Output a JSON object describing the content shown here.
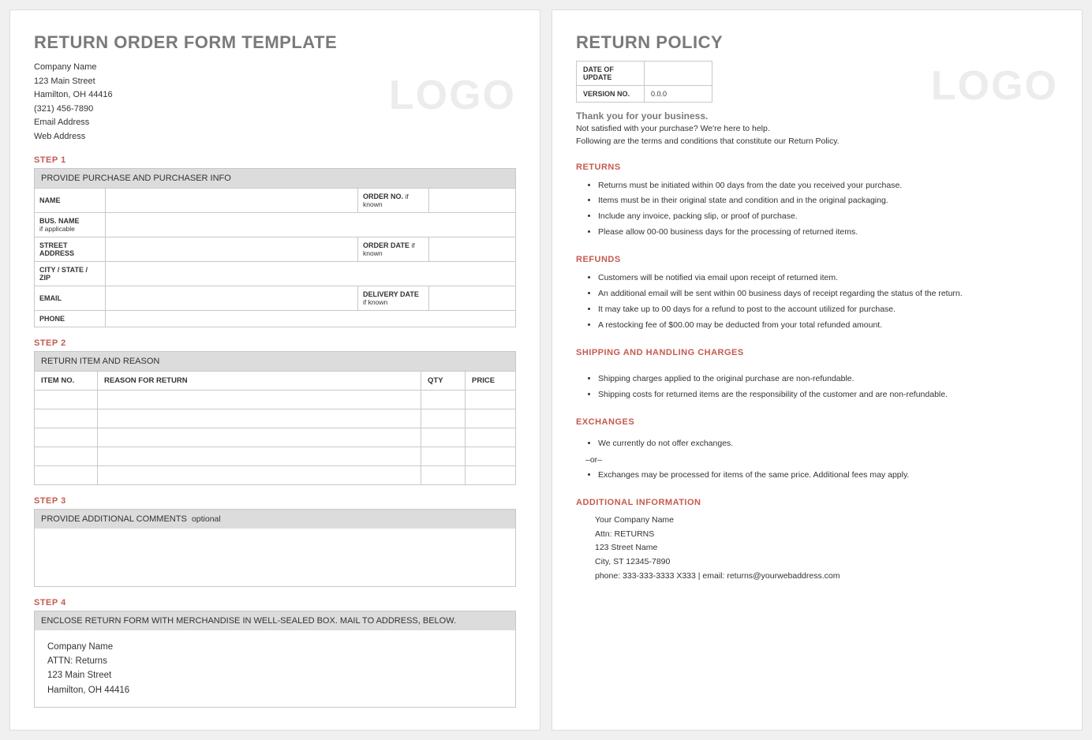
{
  "left": {
    "title": "RETURN ORDER FORM TEMPLATE",
    "logo": "LOGO",
    "company": {
      "name": "Company Name",
      "street": "123 Main Street",
      "city": "Hamilton, OH 44416",
      "phone": "(321) 456-7890",
      "email": "Email Address",
      "web": "Web Address"
    },
    "step1": {
      "label": "STEP 1",
      "header": "PROVIDE PURCHASE AND PURCHASER INFO",
      "rows": {
        "name": "NAME",
        "order_no": "ORDER NO.",
        "if_known": "if known",
        "bus_name": "BUS. NAME",
        "bus_sub": "if applicable",
        "street": "STREET ADDRESS",
        "order_date": "ORDER DATE",
        "csz": "CITY / STATE / ZIP",
        "email": "EMAIL",
        "delivery_date": "DELIVERY DATE",
        "phone": "PHONE"
      }
    },
    "step2": {
      "label": "STEP 2",
      "header": "RETURN ITEM AND REASON",
      "cols": {
        "item": "ITEM NO.",
        "reason": "REASON FOR RETURN",
        "qty": "QTY",
        "price": "PRICE"
      },
      "row_count": 5
    },
    "step3": {
      "label": "STEP 3",
      "header": "PROVIDE ADDITIONAL COMMENTS",
      "header_sub": "optional"
    },
    "step4": {
      "label": "STEP 4",
      "header": "ENCLOSE RETURN FORM WITH MERCHANDISE IN WELL-SEALED BOX.  MAIL TO ADDRESS, BELOW.",
      "mail": {
        "name": "Company Name",
        "attn": "ATTN: Returns",
        "street": "123 Main Street",
        "city": "Hamilton, OH 44416"
      }
    }
  },
  "right": {
    "title": "RETURN POLICY",
    "logo": "LOGO",
    "meta": {
      "date_lbl": "DATE OF UPDATE",
      "version_lbl": "VERSION NO.",
      "version_val": "0.0.0"
    },
    "thank": "Thank you for your business.",
    "intro1": "Not satisfied with your purchase? We're here to help.",
    "intro2": "Following are the terms and conditions that constitute our Return Policy.",
    "sections": {
      "returns": {
        "head": "RETURNS",
        "items": [
          "Returns must be initiated within 00 days from the date you received your purchase.",
          "Items must be in their original state and condition and in the original packaging.",
          "Include any invoice, packing slip, or proof of purchase.",
          "Please allow 00-00 business days for the processing of returned items."
        ]
      },
      "refunds": {
        "head": "REFUNDS",
        "items": [
          "Customers will be notified via email upon receipt of returned item.",
          "An additional email will be sent within 00 business days of receipt regarding the status of the return.",
          "It may take up to 00 days for a refund to post to the account utilized for purchase.",
          "A restocking fee of $00.00 may be deducted from your total refunded amount."
        ]
      },
      "shipping": {
        "head": "SHIPPING AND HANDLING CHARGES",
        "items": [
          "Shipping charges applied to the original purchase are non-refundable.",
          "Shipping costs for returned items are the responsibility of the customer and are non-refundable."
        ]
      },
      "exchanges": {
        "head": "EXCHANGES",
        "item1": "We currently do not offer exchanges.",
        "or": "–or–",
        "item2": "Exchanges may be processed for items of the same price. Additional fees may apply."
      },
      "additional": {
        "head": "ADDITIONAL INFORMATION",
        "l1": "Your Company Name",
        "l2": "Attn: RETURNS",
        "l3": "123 Street Name",
        "l4": "City, ST  12345-7890",
        "l5": "phone: 333-333-3333 X333    |    email: returns@yourwebaddress.com"
      }
    }
  },
  "colors": {
    "accent": "#c55a4e",
    "title_gray": "#7a7a7a",
    "logo_gray": "#ececec",
    "border": "#c8c8c8",
    "header_bg": "#dcdcdc"
  }
}
